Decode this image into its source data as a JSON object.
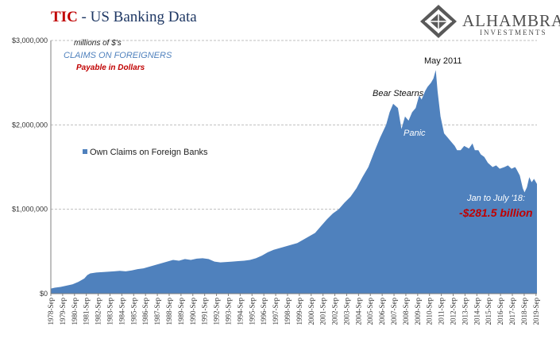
{
  "title_prefix": "TIC",
  "title_rest": "- US Banking Data",
  "logo": {
    "name": "ALHAMBRA",
    "subtitle": "INVESTMENTS",
    "icon": "diamond-lattice-icon"
  },
  "annotations": {
    "units": "millions of $'s",
    "claims": "CLAIMS ON FOREIGNERS",
    "payable": "Payable in Dollars",
    "bear_stearns": "Bear Stearns",
    "may_2011": "May 2011",
    "panic": "Panic",
    "jan_july": "Jan to July '18:",
    "change": "-$281.5 billion"
  },
  "colors": {
    "series": "#4f81bd",
    "title_red": "#c00000",
    "title_navy": "#1f3864",
    "claims_blue": "#4f81bd",
    "note_red": "#c00000"
  },
  "chart_data": {
    "type": "area",
    "ylabel": "",
    "xlabel": "",
    "ylim": [
      0,
      3000000
    ],
    "y_ticks": [
      0,
      1000000,
      2000000,
      3000000
    ],
    "y_tick_labels": [
      "$0",
      "$1,000,000",
      "$2,000,000",
      "$3,000,000"
    ],
    "x_tick_labels": [
      "1978-Sep",
      "1979-Sep",
      "1980-Sep",
      "1981-Sep",
      "1982-Sep",
      "1983-Sep",
      "1984-Sep",
      "1985-Sep",
      "1986-Sep",
      "1987-Sep",
      "1988-Sep",
      "1989-Sep",
      "1990-Sep",
      "1991-Sep",
      "1992-Sep",
      "1993-Sep",
      "1994-Sep",
      "1995-Sep",
      "1996-Sep",
      "1997-Sep",
      "1998-Sep",
      "1999-Sep",
      "2000-Sep",
      "2001-Sep",
      "2002-Sep",
      "2003-Sep",
      "2004-Sep",
      "2005-Sep",
      "2006-Sep",
      "2007-Sep",
      "2008-Sep",
      "2009-Sep",
      "2010-Sep",
      "2011-Sep",
      "2012-Sep",
      "2013-Sep",
      "2014-Sep",
      "2015-Sep",
      "2016-Sep",
      "2017-Sep",
      "2018-Sep",
      "2019-Sep"
    ],
    "grid": "horizontal dashed",
    "legend_position": "left-middle",
    "series": [
      {
        "name": "Own Claims on Foreign Banks",
        "x": [
          1978.67,
          1979.0,
          1979.5,
          1980.0,
          1980.5,
          1981.0,
          1981.5,
          1981.75,
          1982.0,
          1982.5,
          1983.0,
          1983.5,
          1984.0,
          1984.5,
          1985.0,
          1985.5,
          1986.0,
          1986.5,
          1987.0,
          1987.5,
          1988.0,
          1988.5,
          1989.0,
          1989.5,
          1990.0,
          1990.5,
          1991.0,
          1991.5,
          1992.0,
          1992.5,
          1993.0,
          1993.5,
          1994.0,
          1994.5,
          1995.0,
          1995.5,
          1996.0,
          1996.5,
          1997.0,
          1997.5,
          1998.0,
          1998.5,
          1999.0,
          1999.5,
          2000.0,
          2000.5,
          2001.0,
          2001.5,
          2002.0,
          2002.5,
          2003.0,
          2003.5,
          2004.0,
          2004.5,
          2005.0,
          2005.5,
          2006.0,
          2006.5,
          2007.0,
          2007.3,
          2007.6,
          2008.0,
          2008.3,
          2008.6,
          2008.9,
          2009.2,
          2009.5,
          2009.8,
          2010.0,
          2010.3,
          2010.5,
          2010.8,
          2011.0,
          2011.2,
          2011.35,
          2011.6,
          2011.9,
          2012.2,
          2012.5,
          2012.8,
          2013.0,
          2013.3,
          2013.6,
          2014.0,
          2014.3,
          2014.5,
          2014.8,
          2015.0,
          2015.3,
          2015.6,
          2016.0,
          2016.3,
          2016.6,
          2017.0,
          2017.3,
          2017.6,
          2017.9,
          2018.0,
          2018.3,
          2018.55,
          2018.7,
          2018.9,
          2019.1,
          2019.3,
          2019.5,
          2019.75
        ],
        "values": [
          60000,
          70000,
          80000,
          95000,
          110000,
          140000,
          180000,
          220000,
          240000,
          250000,
          255000,
          260000,
          265000,
          270000,
          265000,
          275000,
          290000,
          300000,
          320000,
          340000,
          360000,
          380000,
          400000,
          390000,
          410000,
          400000,
          415000,
          420000,
          410000,
          380000,
          370000,
          375000,
          380000,
          385000,
          390000,
          400000,
          420000,
          450000,
          490000,
          520000,
          540000,
          560000,
          580000,
          600000,
          640000,
          680000,
          720000,
          800000,
          880000,
          950000,
          1000000,
          1080000,
          1150000,
          1250000,
          1380000,
          1500000,
          1680000,
          1850000,
          2000000,
          2150000,
          2250000,
          2200000,
          1950000,
          2100000,
          2050000,
          2150000,
          2200000,
          2350000,
          2300000,
          2400000,
          2450000,
          2500000,
          2550000,
          2650000,
          2400000,
          2100000,
          1900000,
          1850000,
          1800000,
          1750000,
          1700000,
          1700000,
          1750000,
          1720000,
          1780000,
          1700000,
          1700000,
          1650000,
          1620000,
          1550000,
          1500000,
          1520000,
          1480000,
          1500000,
          1520000,
          1480000,
          1500000,
          1480000,
          1400000,
          1250000,
          1200000,
          1260000,
          1380000,
          1320000,
          1360000,
          1300000
        ]
      }
    ]
  }
}
